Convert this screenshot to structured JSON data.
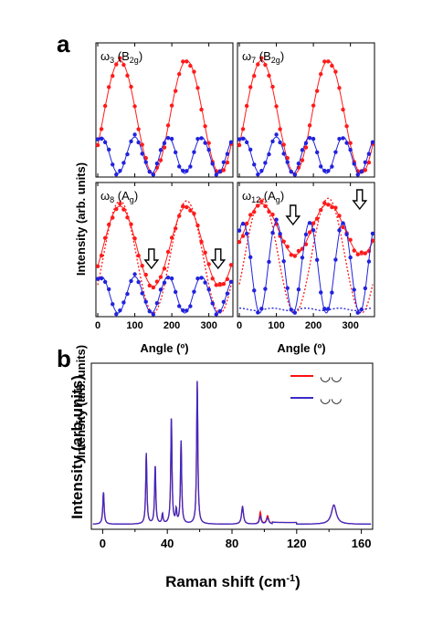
{
  "colors": {
    "red": "#ff1a1a",
    "blue": "#2222dd",
    "spec_blue": "#3a2bc4",
    "spec_red": "#ff1010",
    "axis": "#000000"
  },
  "panel_a": {
    "letter": "a",
    "y_title": "Intensity (arb. units)",
    "x_title": "Angle (º)",
    "x_ticks": [
      "0",
      "100",
      "200",
      "300"
    ]
  },
  "panel_b": {
    "letter": "b",
    "y_title": "Intensity (arb.units)",
    "x_title": "Raman shift (cm",
    "x_title_sup": "-1",
    "x_title_end": ")",
    "x_ticks": [
      "0",
      "40",
      "80",
      "120",
      "160"
    ],
    "legend": [
      {
        "color": "#ff1010",
        "symbol": "◡◡"
      },
      {
        "color": "#3a2bc4",
        "symbol": "◡◡"
      }
    ]
  },
  "chart_data": [
    {
      "type": "scatter",
      "panel": "a",
      "subplot": "top-left",
      "label_main": "ω",
      "label_sub": "3",
      "label_sym": "(B",
      "label_sym_sub": "2g",
      "label_end": ")",
      "xlim": [
        -5,
        365
      ],
      "ylim": [
        0,
        1
      ],
      "series": [
        {
          "color": "red",
          "fit": "cos2",
          "amp": 0.93,
          "base": 0.0,
          "period": 180,
          "phase": 60
        },
        {
          "color": "blue",
          "fit": "cos2_sq",
          "amp": 0.3,
          "base": 0.0,
          "period": 90,
          "phase": 10
        }
      ]
    },
    {
      "type": "scatter",
      "panel": "a",
      "subplot": "top-right",
      "label_main": "ω",
      "label_sub": "7",
      "label_sym": "(B",
      "label_sym_sub": "2g",
      "label_end": ")",
      "xlim": [
        -5,
        365
      ],
      "ylim": [
        0,
        1
      ],
      "series": [
        {
          "color": "red",
          "fit": "cos2",
          "amp": 0.93,
          "base": 0.0,
          "period": 180,
          "phase": 60
        },
        {
          "color": "blue",
          "fit": "cos2_sq",
          "amp": 0.3,
          "base": 0.0,
          "period": 90,
          "phase": 10
        }
      ]
    },
    {
      "type": "scatter",
      "panel": "a",
      "subplot": "bottom-left",
      "label_main": "ω",
      "label_sub": "8",
      "label_sym": "(A",
      "label_sym_sub": "g",
      "label_end": ")",
      "xlim": [
        -5,
        365
      ],
      "ylim": [
        0,
        1
      ],
      "arrows_x": [
        145,
        325
      ],
      "series": [
        {
          "color": "red",
          "fit": "ag",
          "a": 0.88,
          "b": 0.22,
          "period": 180,
          "phase": 60
        },
        {
          "color": "blue",
          "fit": "cos2_sq",
          "amp": 0.3,
          "base": 0.0,
          "period": 90,
          "phase": 10
        }
      ]
    },
    {
      "type": "scatter",
      "panel": "a",
      "subplot": "bottom-right",
      "label_main": "ω",
      "label_sub": "12",
      "label_sym": "(A",
      "label_sym_sub": "g",
      "label_end": ")",
      "xlim": [
        -5,
        365
      ],
      "ylim": [
        0,
        1
      ],
      "arrows_x": [
        145,
        325
      ],
      "series": [
        {
          "color": "red",
          "fit": "ag",
          "a": 0.9,
          "b": 0.48,
          "period": 180,
          "phase": 60
        },
        {
          "color": "blue",
          "fit": "cos2_sq",
          "amp": 0.75,
          "base": 0.0,
          "period": 90,
          "phase": 10
        }
      ]
    },
    {
      "type": "line",
      "panel": "b",
      "xlim": [
        -7,
        167
      ],
      "ylim": [
        0,
        1
      ],
      "peaks": [
        {
          "x": 0.5,
          "h": 0.2,
          "w": 0.5
        },
        {
          "x": 27,
          "h": 0.44,
          "w": 0.45
        },
        {
          "x": 32.5,
          "h": 0.36,
          "w": 0.45
        },
        {
          "x": 37,
          "h": 0.06,
          "w": 0.45
        },
        {
          "x": 42.5,
          "h": 0.66,
          "w": 0.45
        },
        {
          "x": 45.5,
          "h": 0.08,
          "w": 0.45
        },
        {
          "x": 48.5,
          "h": 0.52,
          "w": 0.45
        },
        {
          "x": 58.5,
          "h": 0.89,
          "w": 0.45
        },
        {
          "x": 86.5,
          "h": 0.11,
          "w": 0.7
        },
        {
          "x": 97.5,
          "h": 0.05,
          "w": 0.6
        },
        {
          "x": 102,
          "h": 0.04,
          "w": 0.8
        },
        {
          "x": 143,
          "h": 0.12,
          "w": 1.8
        }
      ]
    }
  ]
}
